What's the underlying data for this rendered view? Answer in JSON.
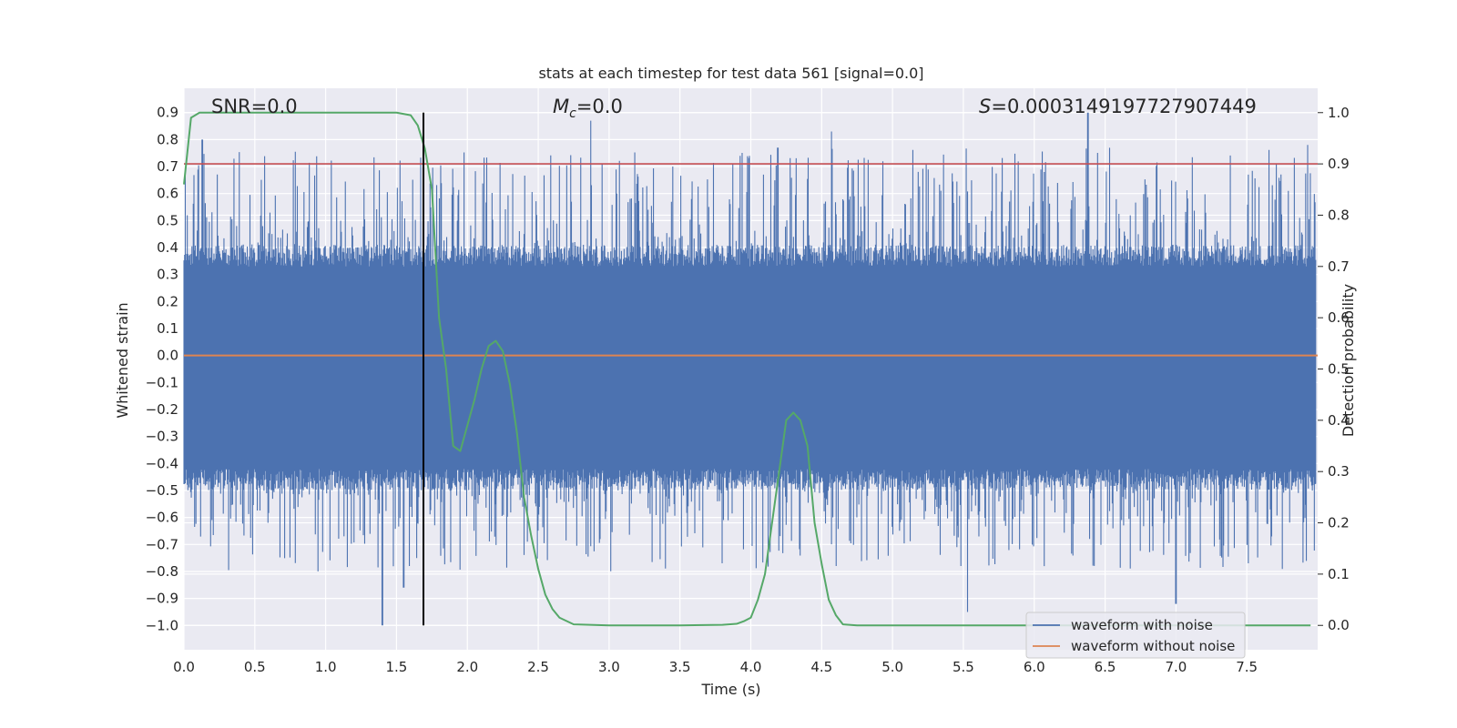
{
  "chart_data": {
    "type": "line",
    "title": "stats at each timestep for test data 561 [signal=0.0]",
    "xlabel": "Time (s)",
    "ylabel": "Whitened strain",
    "y2label": "Detection probability",
    "xlim": [
      0.0,
      8.0
    ],
    "ylim": [
      -1.09,
      0.99
    ],
    "y2lim": [
      -0.0475,
      1.0475
    ],
    "xticks": [
      "0.0",
      "0.5",
      "1.0",
      "1.5",
      "2.0",
      "2.5",
      "3.0",
      "3.5",
      "4.0",
      "4.5",
      "5.0",
      "5.5",
      "6.0",
      "6.5",
      "7.0",
      "7.5"
    ],
    "yticks": [
      "0.9",
      "0.8",
      "0.7",
      "0.6",
      "0.5",
      "0.4",
      "0.3",
      "0.2",
      "0.1",
      "0.0",
      "−0.1",
      "−0.2",
      "−0.3",
      "−0.4",
      "−0.5",
      "−0.6",
      "−0.7",
      "−0.8",
      "−0.9",
      "−1.0"
    ],
    "y2ticks": [
      "1.0",
      "0.9",
      "0.8",
      "0.7",
      "0.6",
      "0.5",
      "0.4",
      "0.3",
      "0.2",
      "0.1",
      "0.0"
    ],
    "grid": true,
    "legend_position": "lower-right",
    "annotations": {
      "snr": "SNR=0.0",
      "mc_symbol": "M",
      "mc_sub": "c",
      "mc_value": "=0.0",
      "s_symbol": "S",
      "s_value": "=0.0003149197727907449"
    },
    "series": [
      {
        "name": "waveform with noise",
        "color": "#4c72b0",
        "axis": "left",
        "style": "dense noise trace, core band approx -0.42 to 0.33, spikes reaching about -1.0 and 0.9",
        "notable_peaks": [
          {
            "x": 0.13,
            "y": 0.8
          },
          {
            "x": 1.4,
            "y": -1.0
          },
          {
            "x": 1.55,
            "y": -0.86
          },
          {
            "x": 2.87,
            "y": 0.87
          },
          {
            "x": 4.19,
            "y": 0.77
          },
          {
            "x": 4.57,
            "y": 0.83
          },
          {
            "x": 5.53,
            "y": -0.95
          },
          {
            "x": 6.38,
            "y": 0.9
          },
          {
            "x": 7.0,
            "y": -0.92
          },
          {
            "x": 7.93,
            "y": 0.78
          }
        ]
      },
      {
        "name": "waveform without noise",
        "color": "#dd8452",
        "axis": "left",
        "x": [
          0.0,
          8.0
        ],
        "y": [
          0.0,
          0.0
        ]
      },
      {
        "name": "",
        "color": "#55a868",
        "axis": "right",
        "x": [
          0.0,
          0.05,
          0.11,
          0.2,
          0.5,
          1.0,
          1.5,
          1.6,
          1.65,
          1.7,
          1.75,
          1.8,
          1.85,
          1.9,
          1.95,
          2.0,
          2.05,
          2.1,
          2.15,
          2.2,
          2.25,
          2.3,
          2.35,
          2.4,
          2.45,
          2.5,
          2.55,
          2.6,
          2.65,
          2.75,
          3.0,
          3.5,
          3.8,
          3.9,
          3.95,
          4.0,
          4.05,
          4.1,
          4.15,
          4.2,
          4.25,
          4.3,
          4.35,
          4.4,
          4.45,
          4.5,
          4.55,
          4.6,
          4.65,
          4.75,
          5.0,
          6.0,
          7.0,
          7.95
        ],
        "y": [
          0.86,
          0.99,
          1.0,
          1.0,
          1.0,
          1.0,
          1.0,
          0.995,
          0.975,
          0.93,
          0.85,
          0.6,
          0.5,
          0.35,
          0.34,
          0.39,
          0.44,
          0.5,
          0.545,
          0.555,
          0.535,
          0.47,
          0.375,
          0.25,
          0.175,
          0.11,
          0.06,
          0.032,
          0.015,
          0.002,
          0.0,
          0.0,
          0.001,
          0.003,
          0.008,
          0.015,
          0.05,
          0.1,
          0.2,
          0.3,
          0.4,
          0.415,
          0.4,
          0.35,
          0.2,
          0.12,
          0.05,
          0.02,
          0.002,
          0.0,
          0.0,
          0.0,
          0.0,
          0.0
        ]
      }
    ],
    "threshold_line": {
      "axis": "right",
      "y": 0.9,
      "color": "#c44e52"
    },
    "marker_line": {
      "x": 1.69,
      "y_from": -1.0,
      "y_to": 0.9,
      "color": "#000000"
    }
  }
}
